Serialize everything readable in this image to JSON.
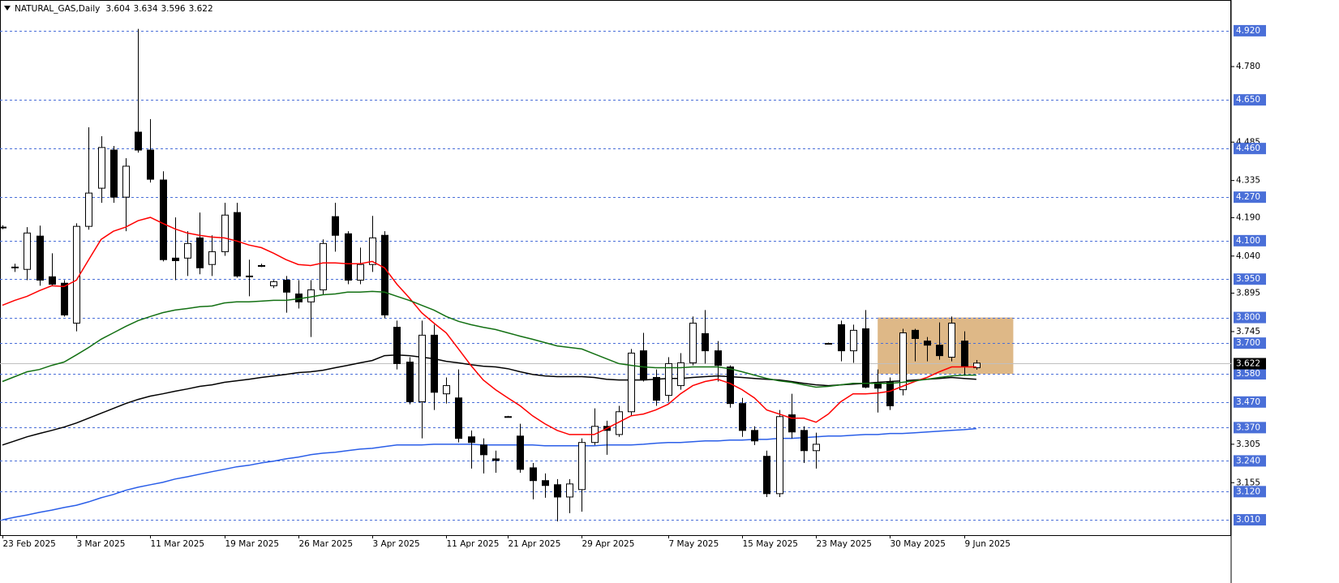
{
  "chart_data": {
    "type": "candlestick",
    "title": "NATURAL_GAS,Daily",
    "categories": [
      "23 Feb 2025",
      null,
      null,
      null,
      null,
      null,
      "3 Mar 2025",
      null,
      null,
      null,
      null,
      null,
      "11 Mar 2025",
      null,
      null,
      null,
      null,
      null,
      "19 Mar 2025",
      null,
      null,
      null,
      null,
      null,
      "26 Mar 2025",
      null,
      null,
      null,
      null,
      null,
      "3 Apr 2025",
      null,
      null,
      null,
      null,
      null,
      "11 Apr 2025",
      null,
      null,
      null,
      null,
      "21 Apr 2025",
      null,
      null,
      null,
      null,
      null,
      "29 Apr 2025",
      null,
      null,
      null,
      null,
      null,
      null,
      "7 May 2025",
      null,
      null,
      null,
      null,
      null,
      "15 May 2025",
      null,
      null,
      null,
      null,
      null,
      "23 May 2025",
      null,
      null,
      null,
      null,
      null,
      "30 May 2025",
      null,
      null,
      null,
      null,
      null,
      "9 Jun 2025",
      null
    ],
    "open": [
      4.15,
      3.994,
      3.988,
      4.118,
      3.959,
      3.934,
      3.778,
      4.156,
      4.305,
      4.454,
      4.27,
      4.524,
      4.454,
      4.337,
      4.032,
      4.032,
      4.111,
      4.007,
      4.057,
      4.21,
      3.962,
      4.003,
      3.924,
      3.946,
      3.892,
      3.861,
      3.908,
      4.194,
      4.127,
      3.946,
      4.007,
      4.121,
      3.762,
      3.626,
      3.471,
      3.731,
      3.502,
      3.486,
      3.334,
      3.302,
      3.248,
      3.413,
      3.337,
      3.213,
      3.163,
      3.147,
      3.099,
      3.128,
      3.312,
      3.375,
      3.343,
      3.432,
      3.67,
      3.566,
      3.496,
      3.534,
      3.623,
      3.737,
      3.67,
      3.607,
      3.464,
      3.359,
      3.258,
      3.112,
      3.42,
      3.359,
      3.28,
      3.699,
      3.772,
      3.67,
      3.756,
      3.54,
      3.55,
      3.518,
      3.75,
      3.708,
      3.692,
      3.645,
      3.708,
      3.604
    ],
    "high": [
      4.16,
      4.01,
      4.153,
      4.159,
      4.051,
      3.946,
      4.168,
      4.543,
      4.508,
      4.47,
      4.422,
      4.927,
      4.575,
      4.371,
      4.191,
      4.137,
      4.21,
      4.121,
      4.248,
      4.248,
      4.026,
      4.01,
      3.946,
      3.962,
      3.946,
      3.946,
      4.105,
      4.248,
      4.137,
      4.073,
      4.197,
      4.137,
      3.788,
      3.645,
      3.788,
      3.772,
      3.566,
      3.597,
      3.359,
      3.328,
      3.28,
      3.416,
      3.385,
      3.232,
      3.191,
      3.169,
      3.169,
      3.328,
      3.445,
      3.397,
      3.455,
      3.677,
      3.74,
      3.597,
      3.645,
      3.661,
      3.804,
      3.829,
      3.708,
      3.613,
      3.486,
      3.375,
      3.28,
      3.439,
      3.502,
      3.375,
      3.35,
      3.702,
      3.788,
      3.772,
      3.829,
      3.597,
      3.566,
      3.756,
      3.756,
      3.724,
      3.781,
      3.804,
      3.746,
      3.634
    ],
    "low": [
      4.145,
      3.978,
      3.946,
      3.924,
      3.924,
      3.804,
      3.746,
      4.143,
      4.248,
      4.248,
      4.137,
      4.444,
      4.327,
      4.019,
      3.946,
      3.962,
      3.969,
      3.962,
      4.041,
      3.956,
      3.883,
      3.997,
      3.915,
      3.819,
      3.835,
      3.724,
      3.889,
      4.057,
      3.93,
      3.93,
      3.978,
      3.797,
      3.597,
      3.461,
      3.328,
      3.439,
      3.464,
      3.312,
      3.21,
      3.191,
      3.194,
      3.41,
      3.194,
      3.09,
      3.096,
      3.004,
      3.036,
      3.042,
      3.302,
      3.264,
      3.334,
      3.416,
      3.55,
      3.455,
      3.471,
      3.518,
      3.613,
      3.62,
      3.55,
      3.448,
      3.334,
      3.302,
      3.099,
      3.099,
      3.328,
      3.232,
      3.21,
      3.696,
      3.629,
      3.623,
      3.524,
      3.429,
      3.439,
      3.496,
      3.629,
      3.629,
      3.635,
      3.629,
      3.572,
      3.596
    ],
    "close": [
      4.153,
      3.997,
      4.13,
      3.946,
      3.93,
      3.81,
      4.156,
      4.286,
      4.464,
      4.27,
      4.391,
      4.454,
      4.34,
      4.026,
      4.022,
      4.089,
      3.994,
      4.057,
      4.2,
      3.962,
      3.959,
      4.003,
      3.94,
      3.899,
      3.861,
      3.908,
      4.089,
      4.121,
      3.946,
      4.007,
      4.111,
      3.81,
      3.62,
      3.471,
      3.731,
      3.508,
      3.534,
      3.328,
      3.312,
      3.264,
      3.242,
      3.413,
      3.207,
      3.163,
      3.144,
      3.099,
      3.15,
      3.312,
      3.375,
      3.359,
      3.432,
      3.661,
      3.556,
      3.477,
      3.62,
      3.623,
      3.778,
      3.67,
      3.613,
      3.464,
      3.359,
      3.318,
      3.112,
      3.413,
      3.353,
      3.28,
      3.305,
      3.699,
      3.67,
      3.75,
      3.528,
      3.524,
      3.455,
      3.74,
      3.718,
      3.692,
      3.651,
      3.778,
      3.607,
      3.622
    ],
    "up_color": "#ffffff",
    "down_color": "#000000",
    "overlays": [
      {
        "color": "#ff0000",
        "values": [
          3.848,
          3.867,
          3.883,
          3.905,
          3.924,
          3.921,
          3.946,
          4.026,
          4.105,
          4.137,
          4.153,
          4.178,
          4.191,
          4.168,
          4.146,
          4.13,
          4.121,
          4.114,
          4.111,
          4.099,
          4.083,
          4.073,
          4.051,
          4.026,
          4.007,
          4.003,
          4.013,
          4.013,
          4.01,
          4.01,
          4.019,
          3.994,
          3.93,
          3.877,
          3.819,
          3.778,
          3.74,
          3.677,
          3.613,
          3.556,
          3.518,
          3.486,
          3.455,
          3.416,
          3.385,
          3.359,
          3.343,
          3.343,
          3.343,
          3.366,
          3.391,
          3.416,
          3.423,
          3.439,
          3.461,
          3.502,
          3.534,
          3.55,
          3.559,
          3.543,
          3.518,
          3.486,
          3.439,
          3.423,
          3.407,
          3.407,
          3.391,
          3.423,
          3.471,
          3.502,
          3.502,
          3.505,
          3.512,
          3.531,
          3.55,
          3.566,
          3.588,
          3.607,
          3.607,
          3.607
        ]
      },
      {
        "color": "#137013",
        "values": [
          3.55,
          3.569,
          3.588,
          3.597,
          3.613,
          3.626,
          3.654,
          3.683,
          3.715,
          3.74,
          3.765,
          3.788,
          3.804,
          3.819,
          3.829,
          3.835,
          3.842,
          3.845,
          3.857,
          3.861,
          3.861,
          3.864,
          3.867,
          3.867,
          3.873,
          3.88,
          3.889,
          3.892,
          3.899,
          3.899,
          3.902,
          3.899,
          3.883,
          3.867,
          3.848,
          3.829,
          3.804,
          3.785,
          3.772,
          3.762,
          3.753,
          3.74,
          3.727,
          3.715,
          3.702,
          3.689,
          3.683,
          3.677,
          3.658,
          3.639,
          3.62,
          3.613,
          3.607,
          3.604,
          3.604,
          3.604,
          3.607,
          3.607,
          3.607,
          3.6,
          3.588,
          3.575,
          3.562,
          3.553,
          3.547,
          3.537,
          3.528,
          3.531,
          3.537,
          3.543,
          3.543,
          3.543,
          3.543,
          3.547,
          3.553,
          3.559,
          3.566,
          3.572,
          3.575,
          3.575
        ]
      },
      {
        "color": "#000000",
        "values": [
          3.302,
          3.318,
          3.334,
          3.347,
          3.359,
          3.372,
          3.388,
          3.407,
          3.426,
          3.445,
          3.464,
          3.48,
          3.493,
          3.502,
          3.512,
          3.521,
          3.531,
          3.537,
          3.547,
          3.553,
          3.559,
          3.566,
          3.572,
          3.578,
          3.585,
          3.588,
          3.594,
          3.604,
          3.613,
          3.623,
          3.632,
          3.651,
          3.654,
          3.651,
          3.645,
          3.639,
          3.629,
          3.623,
          3.616,
          3.61,
          3.607,
          3.6,
          3.588,
          3.578,
          3.572,
          3.569,
          3.569,
          3.569,
          3.566,
          3.559,
          3.556,
          3.556,
          3.556,
          3.559,
          3.562,
          3.562,
          3.566,
          3.569,
          3.572,
          3.569,
          3.566,
          3.562,
          3.559,
          3.556,
          3.55,
          3.543,
          3.537,
          3.534,
          3.537,
          3.54,
          3.543,
          3.547,
          3.55,
          3.553,
          3.556,
          3.559,
          3.562,
          3.566,
          3.562,
          3.559
        ]
      },
      {
        "color": "#2a5ee8",
        "values": [
          3.01,
          3.02,
          3.029,
          3.039,
          3.048,
          3.058,
          3.067,
          3.08,
          3.096,
          3.109,
          3.125,
          3.137,
          3.147,
          3.156,
          3.169,
          3.178,
          3.188,
          3.198,
          3.207,
          3.217,
          3.223,
          3.232,
          3.239,
          3.248,
          3.255,
          3.264,
          3.27,
          3.274,
          3.28,
          3.286,
          3.289,
          3.296,
          3.302,
          3.302,
          3.302,
          3.305,
          3.305,
          3.305,
          3.305,
          3.302,
          3.302,
          3.302,
          3.302,
          3.302,
          3.299,
          3.299,
          3.299,
          3.299,
          3.299,
          3.302,
          3.302,
          3.302,
          3.305,
          3.309,
          3.312,
          3.312,
          3.315,
          3.318,
          3.318,
          3.321,
          3.321,
          3.324,
          3.324,
          3.328,
          3.328,
          3.331,
          3.334,
          3.337,
          3.337,
          3.34,
          3.343,
          3.343,
          3.347,
          3.347,
          3.35,
          3.353,
          3.356,
          3.359,
          3.362,
          3.366
        ]
      }
    ],
    "zone": {
      "color": "#deb887",
      "low": 3.58,
      "high": 3.8,
      "x_range": [
        71,
        82
      ]
    },
    "ylim": [
      2.95,
      5.04
    ],
    "yticks": [
      {
        "value": 4.78,
        "label": "4.780"
      },
      4.485,
      4.335,
      {
        "value": 4.19,
        "label": "4.190"
      },
      {
        "value": 4.04,
        "label": "4.040"
      },
      3.895,
      3.745,
      3.305,
      3.155
    ],
    "levels_color": "#4a6fd8",
    "levels": [
      {
        "value": 4.92,
        "label": "4.920"
      },
      {
        "value": 4.65,
        "label": "4.650"
      },
      {
        "value": 4.46,
        "label": "4.460"
      },
      {
        "value": 4.27,
        "label": "4.270"
      },
      {
        "value": 4.1,
        "label": "4.100"
      },
      {
        "value": 3.95,
        "label": "3.950"
      },
      {
        "value": 3.8,
        "label": "3.800"
      },
      {
        "value": 3.7,
        "label": "3.700"
      },
      {
        "value": 3.58,
        "label": "3.580"
      },
      {
        "value": 3.47,
        "label": "3.470"
      },
      {
        "value": 3.37,
        "label": "3.370"
      },
      {
        "value": 3.24,
        "label": "3.240"
      },
      {
        "value": 3.12,
        "label": "3.120"
      },
      {
        "value": 3.01,
        "label": "3.010"
      }
    ]
  }
}
